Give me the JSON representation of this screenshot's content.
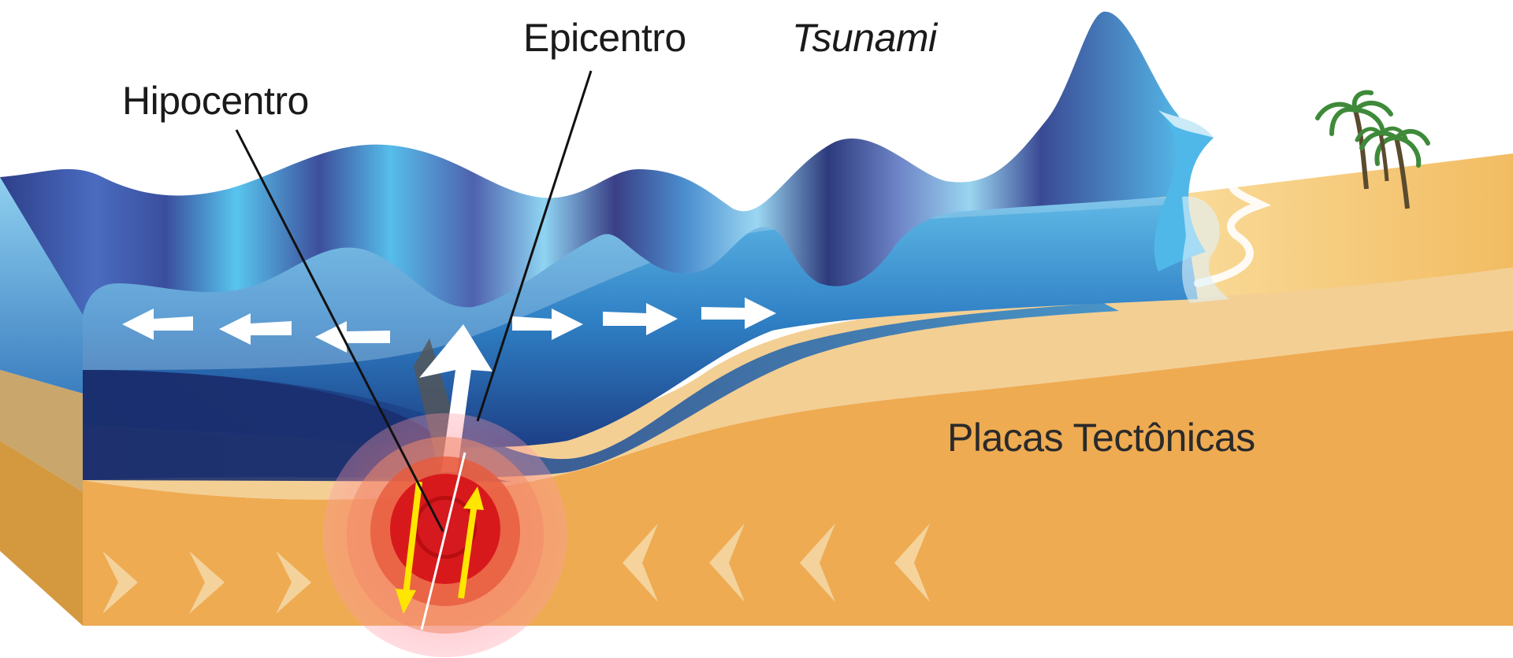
{
  "labels": {
    "epicentro": "Epicentro",
    "tsunami": "Tsunami",
    "hipocentro": "Hipocentro",
    "placas": "Placas Tectônicas"
  },
  "colors": {
    "ocean_light": "#4fb8e8",
    "ocean_dark": "#1b2f6e",
    "wave_purple": "#3a3f86",
    "sediment": "#f3cf94",
    "crust": "#eeab52",
    "sand": "#f6c874",
    "quake_red": "#d8191c",
    "arrow_yellow": "#ffe600"
  },
  "icons": [
    "palm-tree-icon",
    "arrow-icon"
  ]
}
